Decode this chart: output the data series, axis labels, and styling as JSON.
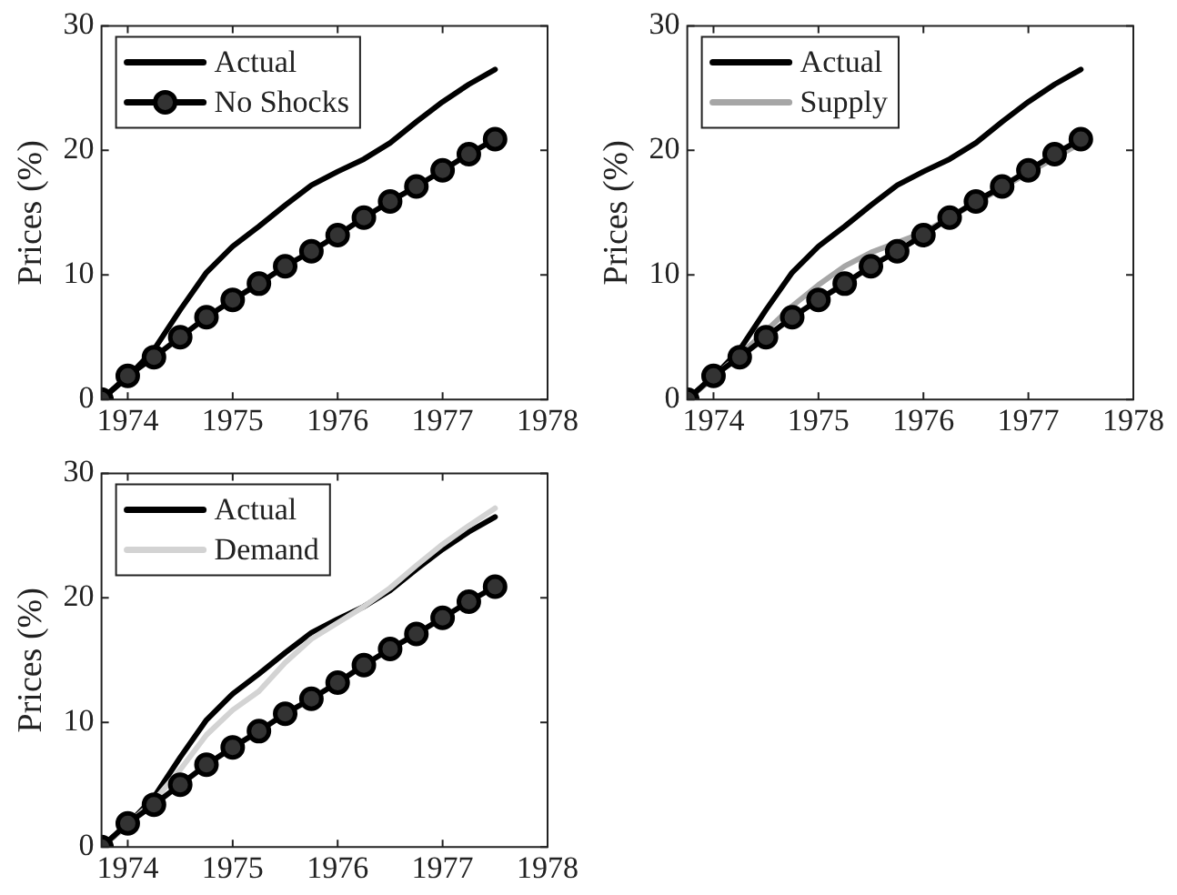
{
  "chart_data": [
    {
      "type": "line",
      "ylabel": "Prices (%)",
      "x": [
        1973.75,
        1974,
        1974.25,
        1974.5,
        1974.75,
        1975,
        1975.25,
        1975.5,
        1975.75,
        1976,
        1976.25,
        1976.5,
        1976.75,
        1977,
        1977.25,
        1977.5
      ],
      "xlim": [
        1973.75,
        1978
      ],
      "xticks": [
        1974,
        1975,
        1976,
        1977,
        1978
      ],
      "ylim": [
        0,
        30
      ],
      "yticks": [
        0,
        10,
        20,
        30
      ],
      "grid": false,
      "legend": "top left",
      "series": [
        {
          "name": "Actual",
          "color": "#000000",
          "marker": "none",
          "values": [
            0,
            1.8,
            4.0,
            7.2,
            10.2,
            12.3,
            13.9,
            15.6,
            17.2,
            18.3,
            19.3,
            20.6,
            22.3,
            23.9,
            25.3,
            26.5
          ]
        },
        {
          "name": "No Shocks",
          "color": "#000000",
          "marker": "circle",
          "values": [
            0,
            1.9,
            3.4,
            5.0,
            6.6,
            8.0,
            9.3,
            10.7,
            11.9,
            13.2,
            14.6,
            15.9,
            17.1,
            18.4,
            19.7,
            20.9
          ]
        }
      ]
    },
    {
      "type": "line",
      "ylabel": "Prices (%)",
      "x": [
        1973.75,
        1974,
        1974.25,
        1974.5,
        1974.75,
        1975,
        1975.25,
        1975.5,
        1975.75,
        1976,
        1976.25,
        1976.5,
        1976.75,
        1977,
        1977.25,
        1977.5
      ],
      "xlim": [
        1973.75,
        1978
      ],
      "xticks": [
        1974,
        1975,
        1976,
        1977,
        1978
      ],
      "ylim": [
        0,
        30
      ],
      "yticks": [
        0,
        10,
        20,
        30
      ],
      "grid": false,
      "legend": "top left",
      "series": [
        {
          "name": "Actual",
          "color": "#000000",
          "marker": "none",
          "values": [
            0,
            1.8,
            4.0,
            7.2,
            10.2,
            12.3,
            13.9,
            15.6,
            17.2,
            18.3,
            19.3,
            20.6,
            22.3,
            23.9,
            25.3,
            26.5
          ]
        },
        {
          "name": "Supply",
          "color": "#a6a6a6",
          "marker": "none",
          "values": [
            0,
            1.8,
            3.6,
            5.5,
            7.5,
            9.2,
            10.7,
            11.8,
            12.6,
            13.4,
            null,
            15.8,
            17.0,
            18.2,
            19.4,
            20.6
          ]
        },
        {
          "color": "#000000",
          "marker": "circle",
          "values": [
            0,
            1.9,
            3.4,
            5.0,
            6.6,
            8.0,
            9.3,
            10.7,
            11.9,
            13.2,
            14.6,
            15.9,
            17.1,
            18.4,
            19.7,
            20.9
          ]
        }
      ]
    },
    {
      "type": "line",
      "ylabel": "Prices (%)",
      "x": [
        1973.75,
        1974,
        1974.25,
        1974.5,
        1974.75,
        1975,
        1975.25,
        1975.5,
        1975.75,
        1976,
        1976.25,
        1976.5,
        1976.75,
        1977,
        1977.25,
        1977.5
      ],
      "xlim": [
        1973.75,
        1978
      ],
      "xticks": [
        1974,
        1975,
        1976,
        1977,
        1978
      ],
      "ylim": [
        0,
        30
      ],
      "yticks": [
        0,
        10,
        20,
        30
      ],
      "grid": false,
      "legend": "top left",
      "series": [
        {
          "name": "Actual",
          "color": "#000000",
          "marker": "none",
          "values": [
            0,
            1.8,
            4.0,
            7.2,
            10.2,
            12.3,
            13.9,
            15.6,
            17.2,
            18.3,
            19.3,
            20.6,
            22.3,
            23.9,
            25.3,
            26.5
          ]
        },
        {
          "name": "Demand",
          "color": "#d3d3d3",
          "marker": "none",
          "values": [
            0,
            1.8,
            3.7,
            6.2,
            9.0,
            11.0,
            12.5,
            14.8,
            16.7,
            18.0,
            19.3,
            20.8,
            22.6,
            24.3,
            25.8,
            27.2
          ]
        },
        {
          "color": "#000000",
          "marker": "circle",
          "values": [
            0,
            1.9,
            3.4,
            5.0,
            6.6,
            8.0,
            9.3,
            10.7,
            11.9,
            13.2,
            14.6,
            15.9,
            17.1,
            18.4,
            19.7,
            20.9
          ]
        }
      ]
    }
  ]
}
